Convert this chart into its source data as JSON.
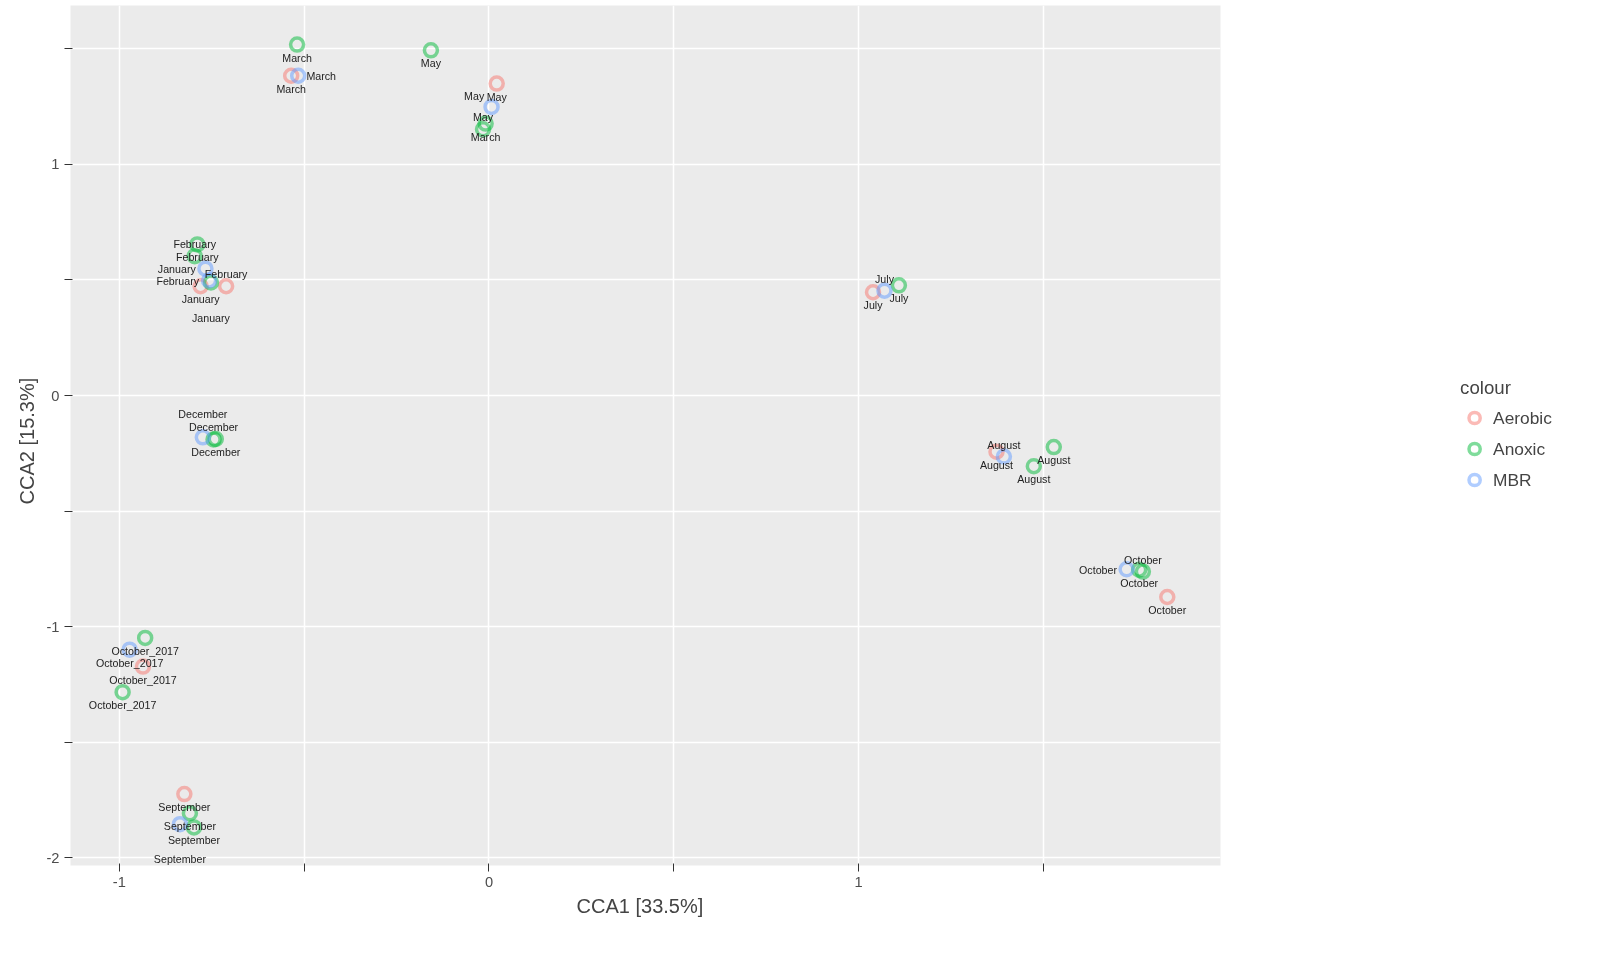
{
  "chart_data": {
    "type": "scatter",
    "xlabel": "CCA1   [33.5%]",
    "ylabel": "CCA2   [15.3%]",
    "legend_title": "colour",
    "legend": "right",
    "grid": true,
    "marker": "circle",
    "xlim": [
      -1.132,
      1.979
    ],
    "ylim": [
      -2.034,
      1.688
    ],
    "xticks": [
      -1,
      {
        "value": -0.5,
        "label": null
      },
      0,
      {
        "value": 0.5,
        "label": null
      },
      1,
      {
        "value": 1.5,
        "label": null
      }
    ],
    "yticks": [
      -2,
      {
        "value": -1.5,
        "label": null
      },
      -1,
      {
        "value": -0.5,
        "label": null
      },
      0,
      {
        "value": 0.5,
        "label": null
      },
      1,
      {
        "value": 1.5,
        "label": null
      }
    ],
    "series": [
      {
        "name": "Aerobic",
        "color": "#f8766d",
        "x": [
          -0.535,
          0.021,
          -0.78,
          -0.711,
          -0.936,
          -0.824,
          1.039,
          1.373,
          1.835
        ],
        "values": [
          1.384,
          1.35,
          0.473,
          0.473,
          -1.173,
          -1.725,
          0.447,
          -0.243,
          -0.872
        ]
      },
      {
        "name": "Anoxic",
        "color": "#00ba38",
        "x": [
          -0.519,
          -0.157,
          -0.009,
          -0.016,
          -0.789,
          -0.796,
          -0.752,
          -0.739,
          -0.745,
          -0.93,
          -0.991,
          -0.809,
          -0.798,
          1.109,
          1.474,
          1.528,
          1.759,
          1.769
        ],
        "values": [
          1.519,
          1.494,
          1.177,
          1.152,
          0.654,
          0.603,
          0.489,
          -0.188,
          -0.19,
          -1.049,
          -1.284,
          -1.808,
          -1.869,
          0.477,
          -0.306,
          -0.223,
          -0.754,
          -0.762
        ]
      },
      {
        "name": "MBR",
        "color": "#619cff",
        "x": [
          -0.516,
          0.007,
          -0.767,
          -0.757,
          -0.774,
          -0.972,
          -0.836,
          1.07,
          1.393,
          1.725
        ],
        "values": [
          1.384,
          1.249,
          0.549,
          0.498,
          -0.181,
          -1.1,
          -1.855,
          0.454,
          -0.264,
          -0.752
        ]
      }
    ],
    "annotations": [
      {
        "text": "March",
        "x": -0.535,
        "y": 1.384
      },
      {
        "text": "May",
        "x": 0.021,
        "y": 1.35
      },
      {
        "text": "January",
        "x": -0.78,
        "y": 0.473
      },
      {
        "text": "February",
        "x": -0.711,
        "y": 0.473
      },
      {
        "text": "October_2017",
        "x": -0.936,
        "y": -1.173
      },
      {
        "text": "September",
        "x": -0.824,
        "y": -1.725
      },
      {
        "text": "July",
        "x": 1.039,
        "y": 0.447
      },
      {
        "text": "August",
        "x": 1.373,
        "y": -0.243
      },
      {
        "text": "October",
        "x": 1.835,
        "y": -0.872
      },
      {
        "text": "March",
        "x": -0.519,
        "y": 1.519
      },
      {
        "text": "May",
        "x": -0.157,
        "y": 1.494
      },
      {
        "text": "March",
        "x": -0.009,
        "y": 1.177
      },
      {
        "text": "May",
        "x": -0.016,
        "y": 1.152
      },
      {
        "text": "February",
        "x": -0.789,
        "y": 0.654
      },
      {
        "text": "February",
        "x": -0.796,
        "y": 0.603
      },
      {
        "text": "January",
        "x": -0.752,
        "y": 0.489
      },
      {
        "text": "December",
        "x": -0.739,
        "y": -0.188
      },
      {
        "text": "December",
        "x": -0.745,
        "y": -0.19
      },
      {
        "text": "October_2017",
        "x": -0.93,
        "y": -1.049
      },
      {
        "text": "October_2017",
        "x": -0.991,
        "y": -1.284
      },
      {
        "text": "September",
        "x": -0.809,
        "y": -1.808
      },
      {
        "text": "September",
        "x": -0.798,
        "y": -1.869
      },
      {
        "text": "July",
        "x": 1.109,
        "y": 0.477
      },
      {
        "text": "August",
        "x": 1.474,
        "y": -0.306
      },
      {
        "text": "August",
        "x": 1.528,
        "y": -0.223
      },
      {
        "text": "October",
        "x": 1.759,
        "y": -0.754
      },
      {
        "text": "October",
        "x": 1.769,
        "y": -0.762
      },
      {
        "text": "March",
        "x": -0.516,
        "y": 1.384
      },
      {
        "text": "May",
        "x": 0.007,
        "y": 1.249
      },
      {
        "text": "January",
        "x": -0.767,
        "y": 0.549
      },
      {
        "text": "February",
        "x": -0.757,
        "y": 0.498
      },
      {
        "text": "December",
        "x": -0.774,
        "y": -0.181
      },
      {
        "text": "October_2017",
        "x": -0.972,
        "y": -1.1
      },
      {
        "text": "September",
        "x": -0.836,
        "y": -1.855
      },
      {
        "text": "July",
        "x": 1.07,
        "y": 0.454
      },
      {
        "text": "August",
        "x": 1.393,
        "y": -0.264
      },
      {
        "text": "October",
        "x": 1.725,
        "y": -0.752
      }
    ]
  }
}
